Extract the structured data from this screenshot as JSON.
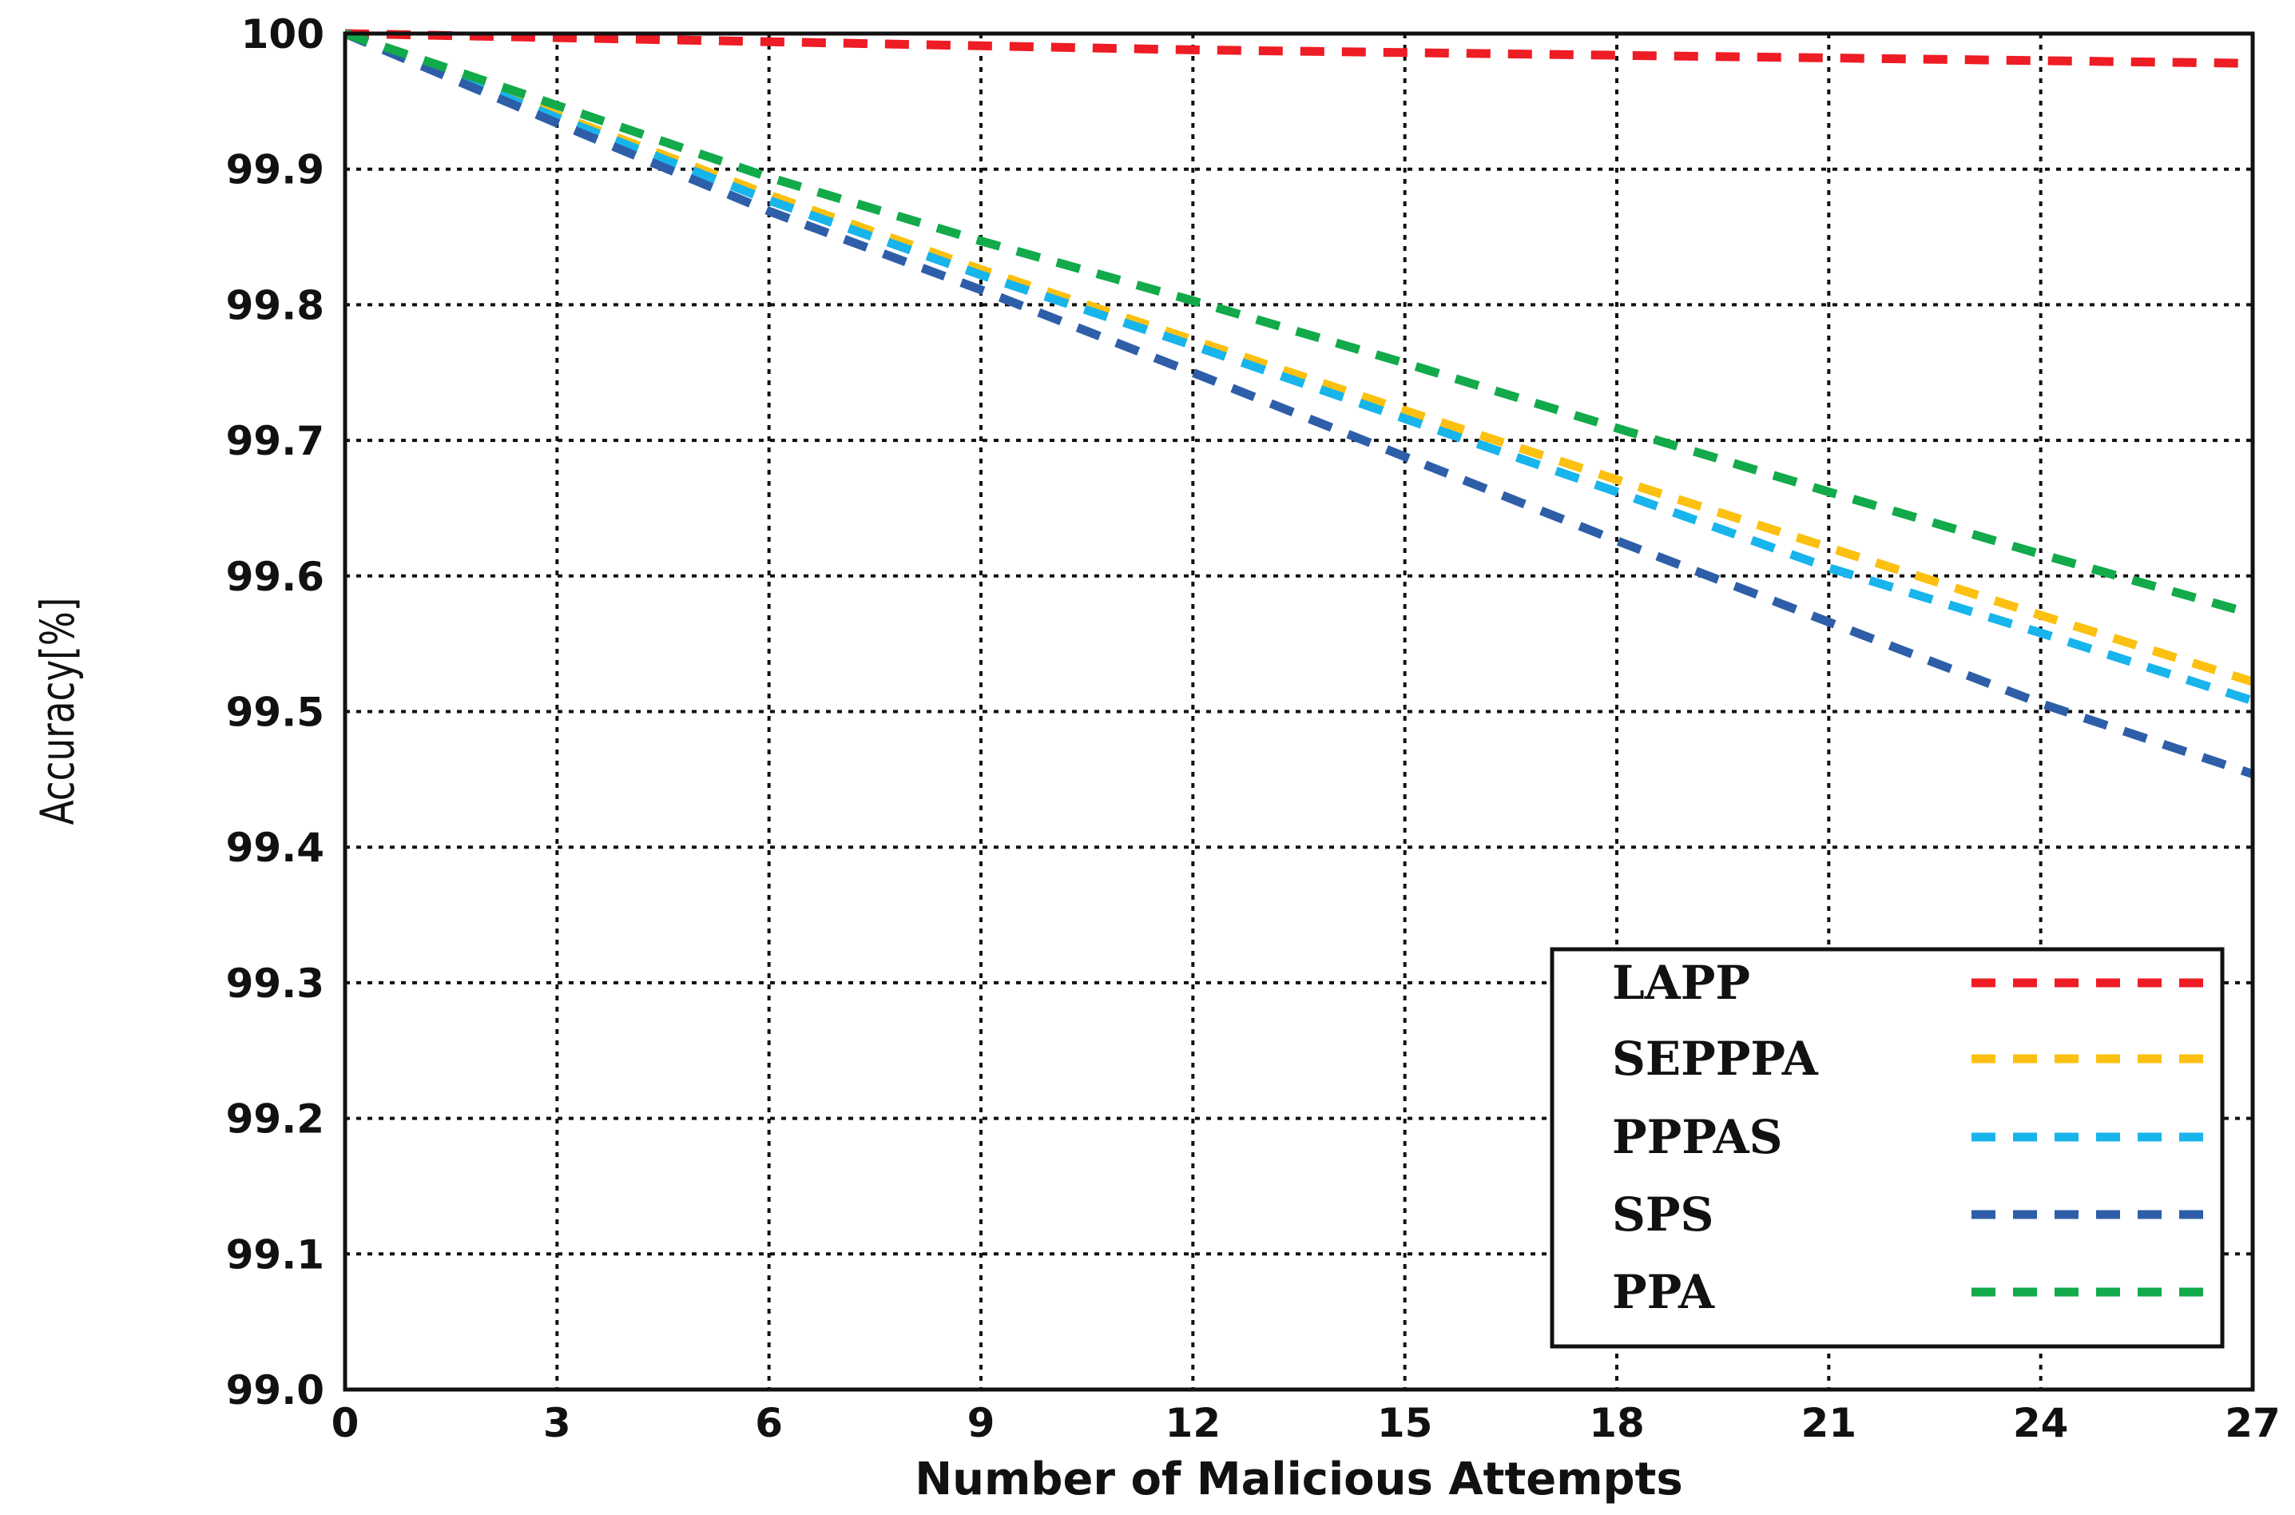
{
  "chart_data": {
    "type": "line",
    "title": "",
    "xlabel": "Number of Malicious Attempts",
    "ylabel": "Accuracy[%]",
    "xlim": [
      0,
      27
    ],
    "ylim": [
      99.0,
      100
    ],
    "x_ticks": [
      "0",
      "3",
      "6",
      "9",
      "12",
      "15",
      "18",
      "21",
      "24",
      "27"
    ],
    "y_ticks": [
      "99.0",
      "99.1",
      "99.2",
      "99.3",
      "99.4",
      "99.5",
      "99.6",
      "99.7",
      "99.8",
      "99.9",
      "100"
    ],
    "grid": true,
    "legend_position": "bottom-right",
    "x": [
      0,
      3,
      6,
      9,
      12,
      15,
      18,
      21,
      24,
      27
    ],
    "series": [
      {
        "name": "LAPP",
        "color": "#ee1c25",
        "values": [
          100.0,
          99.997,
          99.994,
          99.991,
          99.988,
          99.986,
          99.984,
          99.982,
          99.98,
          99.978
        ]
      },
      {
        "name": "SEPPPA",
        "color": "#fcc010",
        "values": [
          100.0,
          99.94,
          99.881,
          99.826,
          99.774,
          99.722,
          99.671,
          99.621,
          99.571,
          99.522
        ]
      },
      {
        "name": "PPPAS",
        "color": "#18b4ec",
        "values": [
          100.0,
          99.938,
          99.877,
          99.822,
          99.77,
          99.716,
          99.662,
          99.606,
          99.558,
          99.508
        ]
      },
      {
        "name": "SPS",
        "color": "#2e5ea8",
        "values": [
          100.0,
          99.934,
          99.869,
          99.811,
          99.75,
          99.688,
          99.626,
          99.566,
          99.506,
          99.454
        ]
      },
      {
        "name": "PPA",
        "color": "#12aa4a",
        "values": [
          100.0,
          99.947,
          99.894,
          99.847,
          99.803,
          99.757,
          99.709,
          99.662,
          99.616,
          99.572
        ]
      }
    ]
  }
}
